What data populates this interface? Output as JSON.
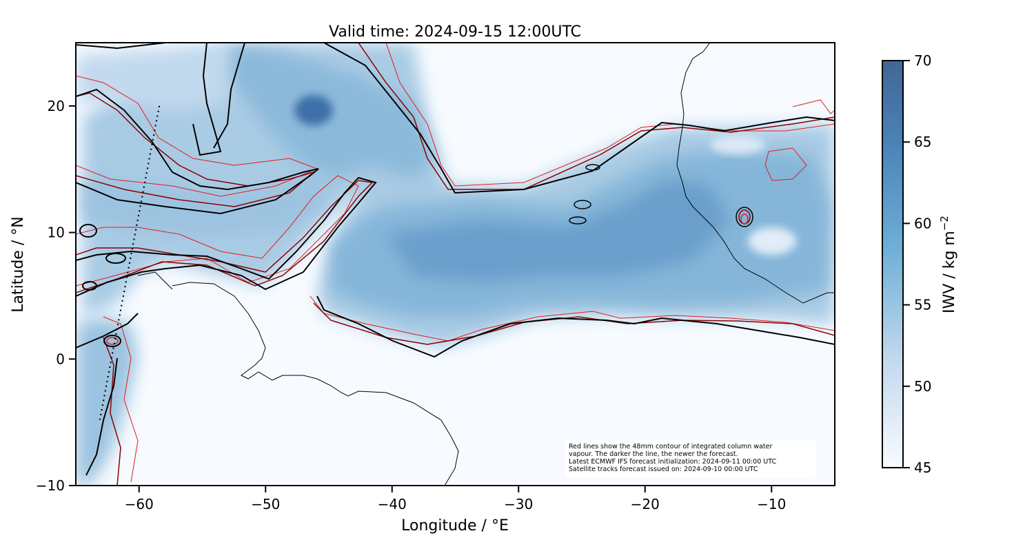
{
  "title": "Valid time: 2024-09-15 12:00UTC",
  "map": {
    "xlabel": "Longitude / °E",
    "ylabel": "Latitude / °N",
    "xlim": [
      -65,
      -5
    ],
    "ylim": [
      -10,
      25
    ],
    "xticks": [
      -60,
      -50,
      -40,
      -30,
      -20,
      -10
    ],
    "yticks": [
      -10,
      0,
      10,
      20
    ],
    "xtick_labels": [
      "−60",
      "−50",
      "−40",
      "−30",
      "−20",
      "−10"
    ],
    "ytick_labels": [
      "−10",
      "0",
      "10",
      "20"
    ]
  },
  "colorbar": {
    "label": "IWV / kg m",
    "label_superscript": "−2",
    "min": 45,
    "max": 70,
    "ticks": [
      45,
      50,
      55,
      60,
      65,
      70
    ],
    "tick_labels": [
      "45",
      "50",
      "55",
      "60",
      "65",
      "70"
    ],
    "colors": [
      "#f7fbff",
      "#c6dbef",
      "#6baed6",
      "#4a82b8",
      "#426695"
    ]
  },
  "annotation": {
    "lines": [
      "Red lines show the 48mm contour of integrated column water",
      "vapour. The darker the line, the newer the forecast.",
      "Latest ECMWF IFS forecast initialization: 2024-09-11 00:00 UTC",
      "Satellite tracks forecast issued on: 2024-09-10 00:00 UTC"
    ]
  },
  "colors": {
    "contour_old": "#e31a1c",
    "contour_mid": "#b00000",
    "contour_new": "#5a0000",
    "contour_latest": "#000000",
    "coastline": "#000000"
  },
  "satellite_track": {
    "points": [
      [
        -58.4,
        20
      ],
      [
        -63.1,
        -4.8
      ]
    ]
  }
}
